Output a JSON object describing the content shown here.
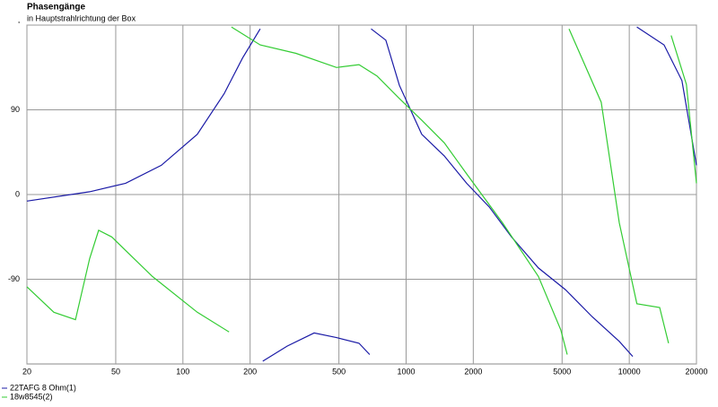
{
  "chart_data": {
    "type": "line",
    "title": "Phasengänge",
    "subtitle": "in Hauptstrahlrichtung der Box",
    "xscale": "log",
    "xlim": [
      20,
      20000
    ],
    "xticks": [
      20,
      50,
      100,
      200,
      500,
      1000,
      2000,
      5000,
      10000,
      20000
    ],
    "ylim": [
      -180,
      180
    ],
    "yticks": [
      -90,
      0,
      90,
      {
        "value": 180,
        "label": "'"
      }
    ],
    "grid": true,
    "legend": "bottom-left",
    "series": [
      {
        "name": "22TAFG 8 Ohm(1)",
        "color": "#1a1aa6",
        "x": [
          20,
          38.2,
          55.4,
          80,
          116,
          153,
          185,
          222,
          225,
          228,
          293,
          387,
          488,
          615,
          687,
          692,
          697,
          811,
          933,
          1175,
          1482,
          1867,
          2355,
          2966,
          3917,
          5173,
          6830,
          9017,
          10360,
          10500,
          10810,
          14320,
          17220,
          20000
        ],
        "values": [
          -7,
          3,
          12,
          31,
          64,
          107,
          145,
          176,
          null,
          -177,
          -161,
          -147,
          -152,
          -158,
          -170,
          null,
          176,
          164,
          116,
          64,
          41,
          12,
          -13,
          -45,
          -78,
          -101,
          -130,
          -156,
          -172,
          null,
          178,
          159,
          121,
          31
        ]
      },
      {
        "name": "18w8545(2)",
        "color": "#33cc33",
        "x": [
          20,
          26.4,
          33,
          38.2,
          41.9,
          48,
          73,
          116,
          161,
          163,
          165,
          222,
          321,
          488,
          615,
          740,
          933,
          1175,
          1482,
          1867,
          2705,
          3917,
          4936,
          5270,
          5320,
          5370,
          7490,
          9017,
          10810,
          13680,
          15000,
          15200,
          15400,
          18030,
          20000
        ],
        "values": [
          -98,
          -125,
          -133,
          -68,
          -38,
          -45,
          -87,
          -125,
          -146,
          null,
          178,
          159,
          150,
          135,
          138,
          126,
          102,
          79,
          55,
          22,
          -30,
          -87,
          -144,
          -170,
          null,
          176,
          98,
          -30,
          -116,
          -120,
          -158,
          null,
          169,
          117,
          12
        ]
      }
    ]
  }
}
